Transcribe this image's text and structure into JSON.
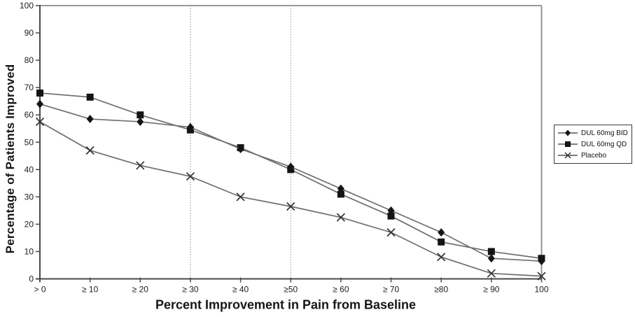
{
  "chart_data": {
    "type": "line",
    "title": "",
    "xlabel": "Percent Improvement in Pain from Baseline",
    "ylabel": "Percentage of Patients Improved",
    "xlim": [
      0,
      100
    ],
    "ylim": [
      0,
      100
    ],
    "y_ticks": [
      0,
      10,
      20,
      30,
      40,
      50,
      60,
      70,
      80,
      90,
      100
    ],
    "x_values": [
      0,
      10,
      20,
      30,
      40,
      50,
      60,
      70,
      80,
      90,
      100
    ],
    "x_tick_labels": [
      "> 0",
      "≥ 10",
      "≥ 20",
      "≥ 30",
      "≥ 40",
      "≥50",
      "≥ 60",
      "≥ 70",
      "≥80",
      "≥ 90",
      "100"
    ],
    "vertical_reference_lines": [
      30,
      50
    ],
    "grid": "vertical dashed lines at 30 and 50 only",
    "legend_position": "right-outside",
    "series": [
      {
        "name": "DUL 60mg BID",
        "marker": "diamond",
        "values": [
          64,
          58.5,
          57.5,
          55.5,
          47.5,
          41,
          33,
          25,
          17,
          7.5,
          6.5
        ]
      },
      {
        "name": "DUL 60mg QD",
        "marker": "square",
        "values": [
          68,
          66.5,
          60,
          54.5,
          48,
          40,
          31,
          23,
          13.5,
          10,
          7.5
        ]
      },
      {
        "name": "Placebo",
        "marker": "x",
        "values": [
          57.5,
          47,
          41.5,
          37.5,
          30,
          26.5,
          22.5,
          17,
          8,
          2,
          1
        ]
      }
    ],
    "colors": {
      "line": "#6e6e6e",
      "marker": "#141414",
      "x_marker": "#333333",
      "axis": "#4a4a4a",
      "frame": "#8a8a8a",
      "grid": "#9a9a9a",
      "text": "#1c1c1c",
      "background": "#ffffff"
    }
  }
}
